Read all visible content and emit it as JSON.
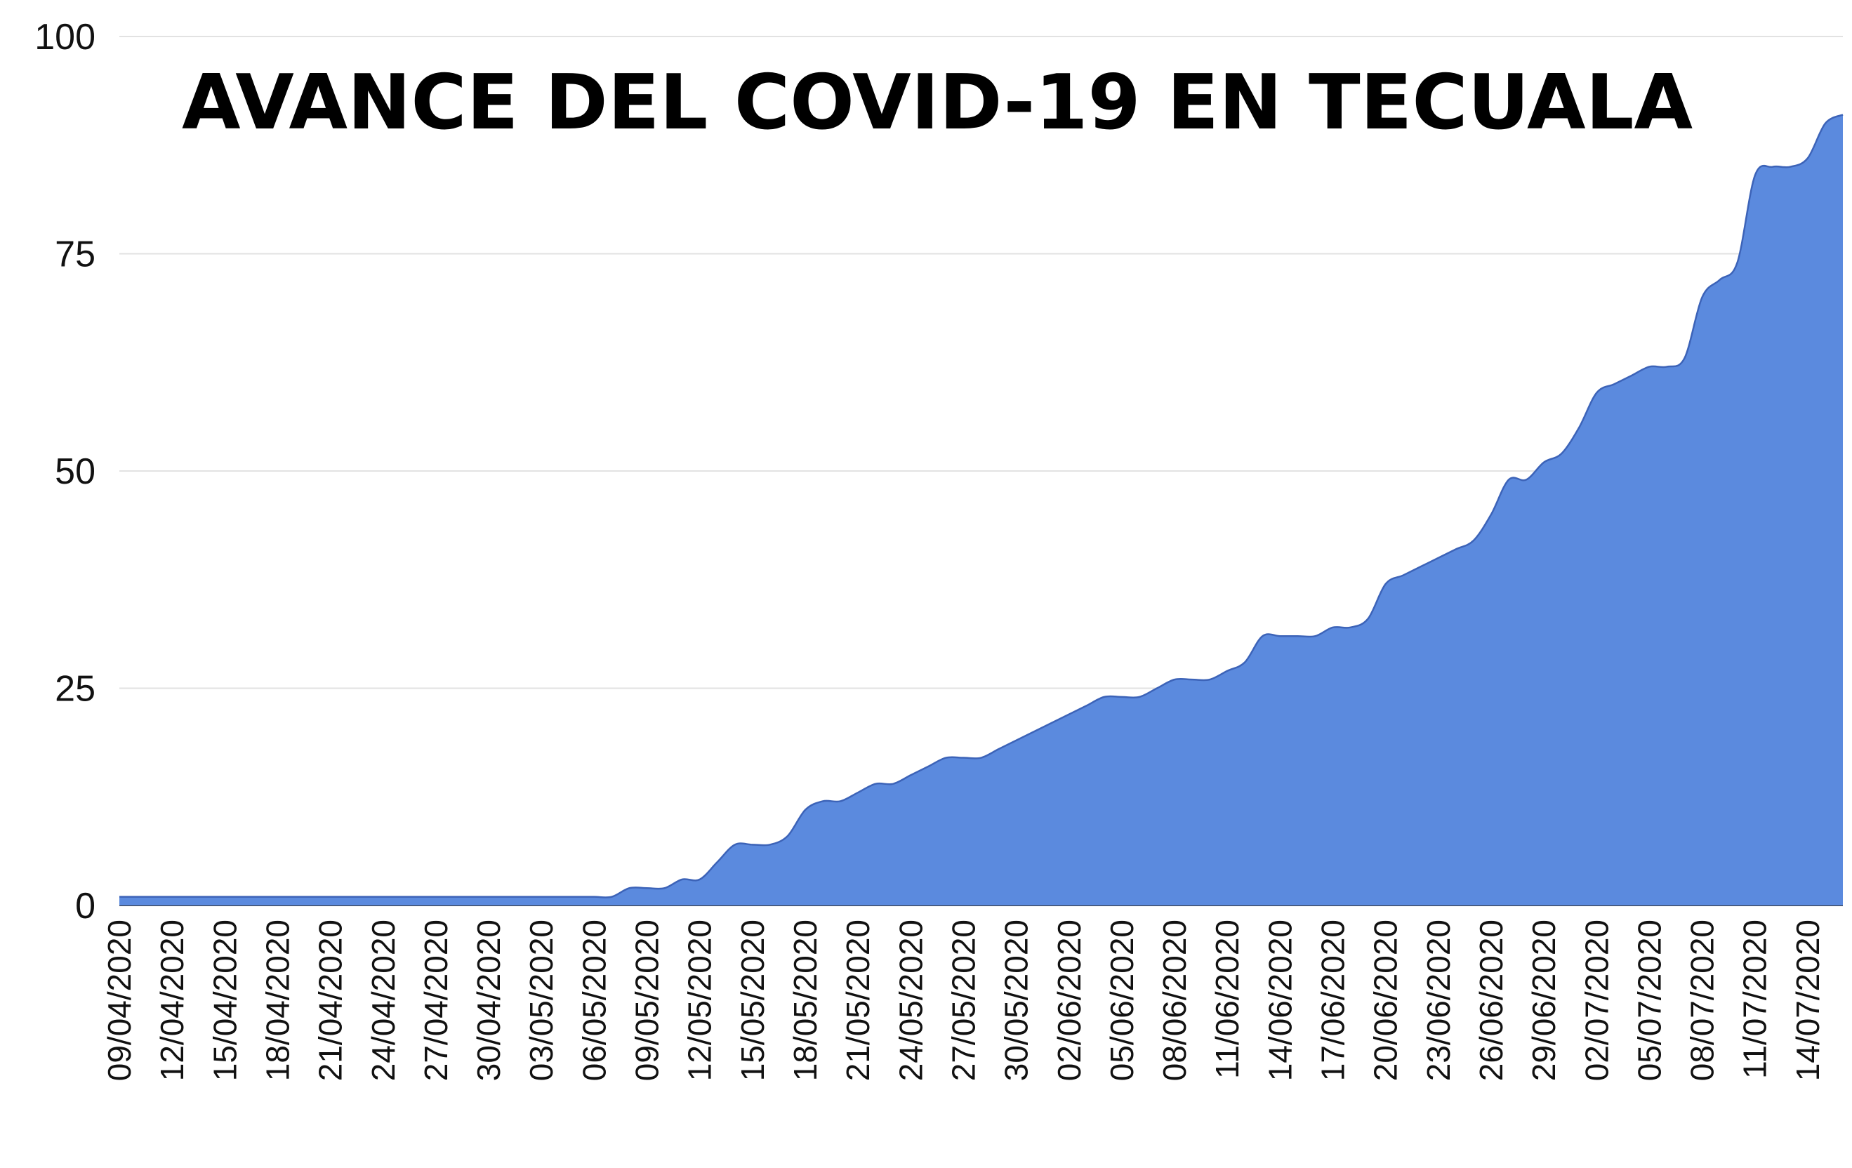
{
  "chart_data": {
    "type": "area",
    "title": "AVANCE DEL COVID-19 EN TECUALA",
    "xlabel": "",
    "ylabel": "",
    "ylim": [
      0,
      100
    ],
    "yticks": [
      "0",
      "25",
      "50",
      "75",
      "100"
    ],
    "grid": true,
    "legend": "none",
    "color": "#5b8ade",
    "stroke_color": "#3c63b8",
    "xtick_labels": [
      "09/04/2020",
      "12/04/2020",
      "15/04/2020",
      "18/04/2020",
      "21/04/2020",
      "24/04/2020",
      "27/04/2020",
      "30/04/2020",
      "03/05/2020",
      "06/05/2020",
      "09/05/2020",
      "12/05/2020",
      "15/05/2020",
      "18/05/2020",
      "21/05/2020",
      "24/05/2020",
      "27/05/2020",
      "30/05/2020",
      "02/06/2020",
      "05/06/2020",
      "08/06/2020",
      "11/06/2020",
      "14/06/2020",
      "17/06/2020",
      "20/06/2020",
      "23/06/2020",
      "26/06/2020",
      "29/06/2020",
      "02/07/2020",
      "05/07/2020",
      "08/07/2020",
      "11/07/2020",
      "14/07/2020"
    ],
    "x_start": "09/04/2020",
    "x_end": "16/07/2020",
    "values": [
      1,
      1,
      1,
      1,
      1,
      1,
      1,
      1,
      1,
      1,
      1,
      1,
      1,
      1,
      1,
      1,
      1,
      1,
      1,
      1,
      1,
      1,
      1,
      1,
      1,
      1,
      1,
      1,
      1,
      2,
      2,
      2,
      3,
      3,
      5,
      7,
      7,
      7,
      8,
      11,
      12,
      12,
      13,
      14,
      14,
      15,
      16,
      17,
      17,
      17,
      18,
      19,
      20,
      21,
      22,
      23,
      24,
      24,
      24,
      25,
      26,
      26,
      26,
      27,
      28,
      31,
      31,
      31,
      31,
      32,
      32,
      33,
      37,
      38,
      39,
      40,
      41,
      42,
      45,
      49,
      49,
      51,
      52,
      55,
      59,
      60,
      61,
      62,
      62,
      63,
      70,
      72,
      74,
      84,
      85,
      85,
      86,
      90,
      91
    ]
  }
}
